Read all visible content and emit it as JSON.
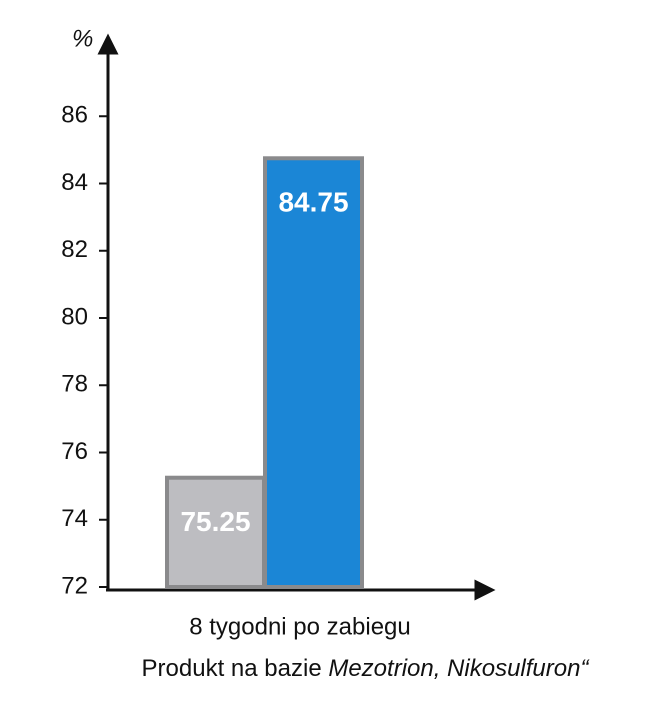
{
  "chart_data": {
    "type": "bar",
    "y_label": "%",
    "categories": [
      "8 tygodni po zabiegu"
    ],
    "series": [
      {
        "color": "#bdbdc1",
        "values": [
          75.25
        ],
        "value_labels": [
          "75.25"
        ]
      },
      {
        "color": "#1b86d6",
        "values": [
          84.75
        ],
        "value_labels": [
          "84.75"
        ]
      }
    ],
    "note": {
      "text": "Produkt na bazie",
      "emphasis": "Mezotrion, Nikosulfuron“"
    },
    "ylim": [
      72,
      88
    ],
    "yticks": [
      72,
      74,
      76,
      78,
      80,
      82,
      84,
      86
    ]
  }
}
